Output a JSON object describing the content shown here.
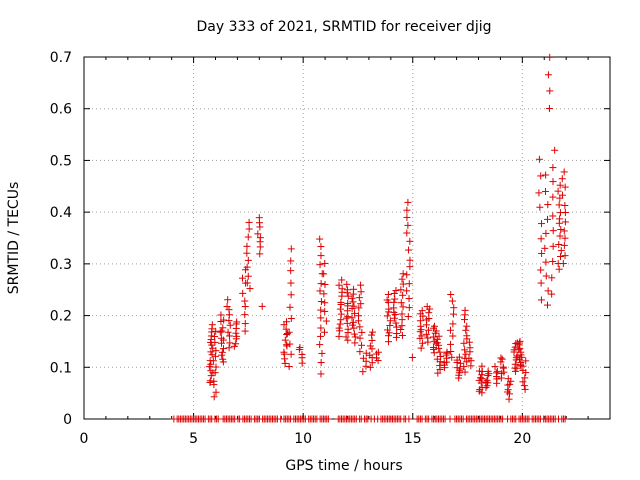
{
  "chart_data": {
    "type": "scatter",
    "title": "Day 333 of 2021, SRMTID for receiver djig",
    "xlabel": "GPS time / hours",
    "ylabel": "SRMTID / TECUs",
    "xlim": [
      0,
      24
    ],
    "ylim": [
      0,
      0.7
    ],
    "xticks": [
      0,
      5,
      10,
      15,
      20
    ],
    "xtick_labels": [
      "0",
      "5",
      "10",
      "15",
      "20"
    ],
    "yticks": [
      0,
      0.1,
      0.2,
      0.3,
      0.4,
      0.5,
      0.6,
      0.7
    ],
    "ytick_labels": [
      "0",
      "0.1",
      "0.2",
      "0.3",
      "0.4",
      "0.5",
      "0.6",
      "0.7"
    ],
    "grid": true,
    "marker": "plus",
    "colors": {
      "series": "#dd0000",
      "grid": "#a0a0a0",
      "axis": "#000000"
    },
    "zero_line": {
      "x_start": 4.1,
      "x_end": 22.0,
      "value": 0
    },
    "clusters": [
      {
        "x": 5.8,
        "ymin": 0.07,
        "ymax": 0.18,
        "n": 18
      },
      {
        "x": 5.95,
        "ymin": 0.04,
        "ymax": 0.17,
        "n": 12
      },
      {
        "x": 6.3,
        "ymin": 0.11,
        "ymax": 0.2,
        "n": 14
      },
      {
        "x": 6.6,
        "ymin": 0.14,
        "ymax": 0.23,
        "n": 10
      },
      {
        "x": 6.9,
        "ymin": 0.14,
        "ymax": 0.19,
        "n": 8
      },
      {
        "x": 7.3,
        "ymin": 0.17,
        "ymax": 0.29,
        "n": 9
      },
      {
        "x": 7.5,
        "ymin": 0.25,
        "ymax": 0.38,
        "n": 10
      },
      {
        "x": 8.0,
        "ymin": 0.32,
        "ymax": 0.39,
        "n": 8
      },
      {
        "x": 8.2,
        "ymin": 0.22,
        "ymax": 0.22,
        "n": 1
      },
      {
        "x": 9.2,
        "ymin": 0.11,
        "ymax": 0.19,
        "n": 12
      },
      {
        "x": 9.4,
        "ymin": 0.1,
        "ymax": 0.33,
        "n": 11
      },
      {
        "x": 9.9,
        "ymin": 0.11,
        "ymax": 0.14,
        "n": 5
      },
      {
        "x": 10.8,
        "ymin": 0.09,
        "ymax": 0.35,
        "n": 16
      },
      {
        "x": 11.0,
        "ymin": 0.17,
        "ymax": 0.3,
        "n": 8
      },
      {
        "x": 11.7,
        "ymin": 0.16,
        "ymax": 0.27,
        "n": 14
      },
      {
        "x": 12.0,
        "ymin": 0.15,
        "ymax": 0.26,
        "n": 14
      },
      {
        "x": 12.3,
        "ymin": 0.15,
        "ymax": 0.25,
        "n": 14
      },
      {
        "x": 12.6,
        "ymin": 0.13,
        "ymax": 0.26,
        "n": 12
      },
      {
        "x": 12.8,
        "ymin": 0.09,
        "ymax": 0.13,
        "n": 5
      },
      {
        "x": 13.1,
        "ymin": 0.1,
        "ymax": 0.17,
        "n": 9
      },
      {
        "x": 13.4,
        "ymin": 0.11,
        "ymax": 0.13,
        "n": 4
      },
      {
        "x": 13.9,
        "ymin": 0.15,
        "ymax": 0.24,
        "n": 12
      },
      {
        "x": 14.2,
        "ymin": 0.16,
        "ymax": 0.25,
        "n": 12
      },
      {
        "x": 14.5,
        "ymin": 0.16,
        "ymax": 0.28,
        "n": 12
      },
      {
        "x": 14.8,
        "ymin": 0.2,
        "ymax": 0.42,
        "n": 15
      },
      {
        "x": 15.0,
        "ymin": 0.12,
        "ymax": 0.12,
        "n": 1
      },
      {
        "x": 15.4,
        "ymin": 0.14,
        "ymax": 0.21,
        "n": 11
      },
      {
        "x": 15.7,
        "ymin": 0.15,
        "ymax": 0.22,
        "n": 10
      },
      {
        "x": 16.0,
        "ymin": 0.13,
        "ymax": 0.18,
        "n": 10
      },
      {
        "x": 16.2,
        "ymin": 0.09,
        "ymax": 0.16,
        "n": 12
      },
      {
        "x": 16.5,
        "ymin": 0.1,
        "ymax": 0.13,
        "n": 8
      },
      {
        "x": 16.8,
        "ymin": 0.12,
        "ymax": 0.24,
        "n": 10
      },
      {
        "x": 17.1,
        "ymin": 0.08,
        "ymax": 0.12,
        "n": 10
      },
      {
        "x": 17.4,
        "ymin": 0.09,
        "ymax": 0.21,
        "n": 14
      },
      {
        "x": 17.6,
        "ymin": 0.1,
        "ymax": 0.15,
        "n": 6
      },
      {
        "x": 18.1,
        "ymin": 0.05,
        "ymax": 0.1,
        "n": 12
      },
      {
        "x": 18.4,
        "ymin": 0.06,
        "ymax": 0.09,
        "n": 8
      },
      {
        "x": 18.8,
        "ymin": 0.07,
        "ymax": 0.1,
        "n": 6
      },
      {
        "x": 19.1,
        "ymin": 0.08,
        "ymax": 0.12,
        "n": 8
      },
      {
        "x": 19.4,
        "ymin": 0.04,
        "ymax": 0.08,
        "n": 8
      },
      {
        "x": 19.7,
        "ymin": 0.09,
        "ymax": 0.15,
        "n": 12
      },
      {
        "x": 19.9,
        "ymin": 0.1,
        "ymax": 0.15,
        "n": 12
      },
      {
        "x": 20.1,
        "ymin": 0.06,
        "ymax": 0.11,
        "n": 8
      },
      {
        "x": 20.8,
        "ymin": 0.23,
        "ymax": 0.5,
        "n": 10
      },
      {
        "x": 21.1,
        "ymin": 0.22,
        "ymax": 0.47,
        "n": 10
      },
      {
        "x": 21.25,
        "ymin": 0.6,
        "ymax": 0.7,
        "n": 4
      },
      {
        "x": 21.4,
        "ymin": 0.24,
        "ymax": 0.52,
        "n": 10
      },
      {
        "x": 21.7,
        "ymin": 0.29,
        "ymax": 0.45,
        "n": 14
      },
      {
        "x": 21.9,
        "ymin": 0.3,
        "ymax": 0.48,
        "n": 12
      }
    ]
  }
}
